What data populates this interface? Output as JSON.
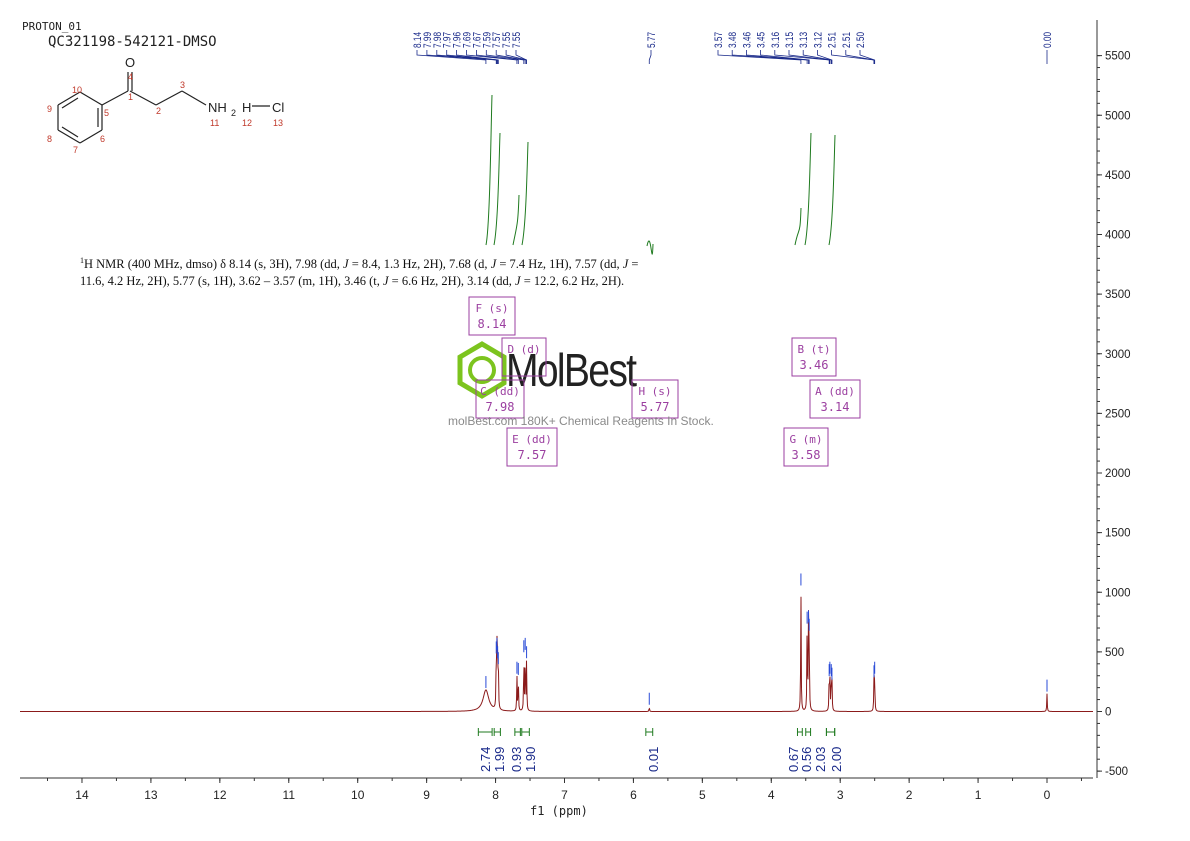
{
  "header": {
    "experiment": "PROTON_01",
    "sample": "QC321198-542121-DMSO"
  },
  "summary": {
    "sup": "1",
    "text_1": "H NMR (400 MHz, dmso) δ 8.14 (s, 3H), 7.98 (dd, ",
    "j_1": "J",
    "text_2": " = 8.4, 1.3 Hz, 2H), 7.68 (d, ",
    "j_2": "J",
    "text_3": " = 7.4 Hz, 1H), 7.57 (dd, ",
    "j_3": "J",
    "text_4": " = 11.6, 4.2 Hz, 2H), 5.77 (s, 1H), 3.62 – 3.57 (m, 1H), 3.46 (t, ",
    "j_4": "J",
    "text_5": " = 6.6 Hz, 2H), 3.14 (dd, ",
    "j_5": "J",
    "text_6": " = 12.2, 6.2 Hz, 2H)."
  },
  "watermark": {
    "logo": "MolBest",
    "tagline": "molBest.com 180K+ Chemical Reagents In Stock."
  },
  "molecule": {
    "atoms": {
      "O": "O",
      "N": "NH",
      "N_sub": "2",
      "H": "H",
      "Cl": "Cl"
    },
    "numbers": [
      "1",
      "2",
      "3",
      "4",
      "5",
      "6",
      "7",
      "8",
      "9",
      "10",
      "11",
      "12",
      "13"
    ]
  },
  "colors": {
    "spectrum": "#8b1a1a",
    "integral": "#1f7a1f",
    "peak_label": "#1a2a8a",
    "multiplet_box": "#9b3fa0",
    "axis": "#333333",
    "logo_green": "#7cc41e"
  },
  "chart_data": {
    "type": "line",
    "xlabel": "f1 (ppm)",
    "xlim": [
      15.0,
      -0.7
    ],
    "x_ticks": [
      "14",
      "13",
      "12",
      "11",
      "10",
      "9",
      "8",
      "7",
      "6",
      "5",
      "4",
      "3",
      "2",
      "1",
      "0"
    ],
    "ylim": [
      -600,
      5800
    ],
    "y_ticks": [
      "5500",
      "5000",
      "4500",
      "4000",
      "3500",
      "3000",
      "2500",
      "2000",
      "1500",
      "1000",
      "500",
      "0",
      "-500"
    ],
    "y_tick_values": [
      5500,
      5000,
      4500,
      4000,
      3500,
      3000,
      2500,
      2000,
      1500,
      1000,
      500,
      0,
      -500
    ],
    "peaks": [
      {
        "ppm": 8.14,
        "height": 180,
        "width": 0.05
      },
      {
        "ppm": 7.99,
        "height": 470
      },
      {
        "ppm": 7.98,
        "height": 500
      },
      {
        "ppm": 7.97,
        "height": 430
      },
      {
        "ppm": 7.96,
        "height": 380
      },
      {
        "ppm": 7.69,
        "height": 300
      },
      {
        "ppm": 7.67,
        "height": 290
      },
      {
        "ppm": 7.59,
        "height": 480
      },
      {
        "ppm": 7.57,
        "height": 500
      },
      {
        "ppm": 7.55,
        "height": 430
      },
      {
        "ppm": 5.77,
        "height": 40
      },
      {
        "ppm": 3.57,
        "height": 1040
      },
      {
        "ppm": 3.48,
        "height": 720
      },
      {
        "ppm": 3.46,
        "height": 730
      },
      {
        "ppm": 3.45,
        "height": 660
      },
      {
        "ppm": 3.16,
        "height": 280
      },
      {
        "ppm": 3.15,
        "height": 300
      },
      {
        "ppm": 3.13,
        "height": 280
      },
      {
        "ppm": 3.12,
        "height": 250
      },
      {
        "ppm": 2.51,
        "height": 270
      },
      {
        "ppm": 2.5,
        "height": 300
      },
      {
        "ppm": 0.0,
        "height": 150
      }
    ],
    "peak_labels": {
      "group1": [
        "8.14",
        "7.99",
        "7.98",
        "7.97",
        "7.96",
        "7.69",
        "7.67",
        "7.59",
        "7.57",
        "7.55",
        "7.55"
      ],
      "group2": [
        "5.77"
      ],
      "group3": [
        "3.57",
        "3.48",
        "3.46",
        "3.45",
        "3.16",
        "3.15",
        "3.13",
        "3.12",
        "2.51",
        "2.51",
        "2.50"
      ],
      "group4": [
        "0.00"
      ]
    },
    "integrals": [
      {
        "value": "2.74",
        "from": 8.25,
        "to": 8.05
      },
      {
        "value": "1.99",
        "from": 8.02,
        "to": 7.93
      },
      {
        "value": "0.93",
        "from": 7.72,
        "to": 7.64
      },
      {
        "value": "1.90",
        "from": 7.62,
        "to": 7.51
      },
      {
        "value": "0.01",
        "from": 5.82,
        "to": 5.72
      },
      {
        "value": "0.67",
        "from": 3.62,
        "to": 3.55
      },
      {
        "value": "0.56",
        "from": 3.5,
        "to": 3.43
      },
      {
        "value": "2.03",
        "from": 3.2,
        "to": 3.08
      },
      {
        "value": "2.00",
        "from": 3.2,
        "to": 3.08
      }
    ],
    "multiplets": [
      {
        "id": "F",
        "type": "(s)",
        "shift": "8.14"
      },
      {
        "id": "D",
        "type": "(d)",
        "shift": ""
      },
      {
        "id": "C",
        "type": "(dd)",
        "shift": "7.98"
      },
      {
        "id": "E",
        "type": "(dd)",
        "shift": "7.57"
      },
      {
        "id": "H",
        "type": "(s)",
        "shift": "5.77"
      },
      {
        "id": "B",
        "type": "(t)",
        "shift": "3.46"
      },
      {
        "id": "A",
        "type": "(dd)",
        "shift": "3.14"
      },
      {
        "id": "G",
        "type": "(m)",
        "shift": "3.58"
      }
    ]
  }
}
